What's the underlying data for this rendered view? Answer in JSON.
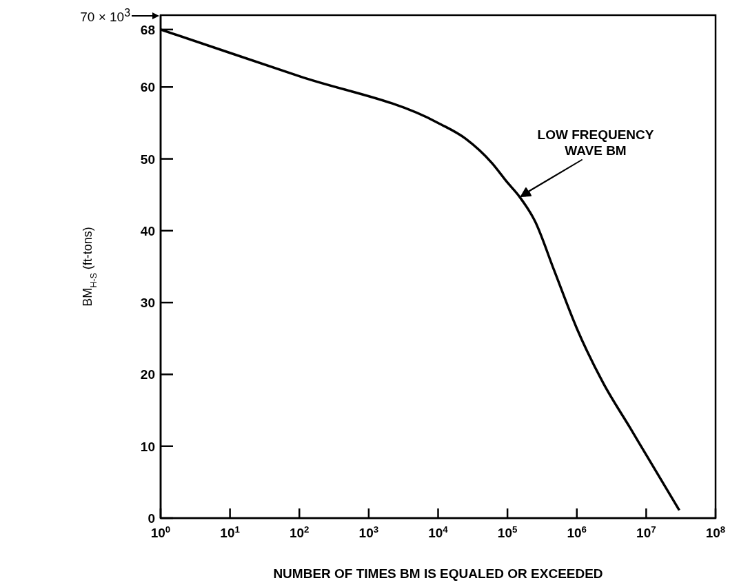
{
  "chart_data": {
    "type": "line",
    "xlabel": "NUMBER OF TIMES BM IS EQUALED OR EXCEEDED",
    "ylabel": "BM$_{H-S}$ (ft-tons)",
    "log": "x",
    "x": [
      1,
      100,
      10000,
      25000,
      60000,
      100000,
      150000,
      250000,
      470000,
      1000000,
      2400000,
      6000000,
      10000000,
      30000000
    ],
    "series": [
      {
        "color": "#000000",
        "values": [
          68,
          61.5,
          55,
          52.8,
          49.4,
          46.7,
          44.7,
          41.3,
          34.5,
          26.4,
          18.8,
          12.4,
          8.8,
          1.1
        ]
      }
    ],
    "xlim": [
      1,
      100000000
    ],
    "xticks": [
      {
        "value": 1,
        "label": "10$^{0}$"
      },
      {
        "value": 10,
        "label": "10$^{1}$"
      },
      {
        "value": 100,
        "label": "10$^{2}$"
      },
      {
        "value": 1000,
        "label": "10$^{3}$"
      },
      {
        "value": 10000,
        "label": "10$^{4}$"
      },
      {
        "value": 100000,
        "label": "10$^{5}$"
      },
      {
        "value": 1000000,
        "label": "10$^{6}$"
      },
      {
        "value": 10000000,
        "label": "10$^{7}$"
      },
      {
        "value": 100000000,
        "label": "10$^{8}$"
      }
    ],
    "ylim": [
      0,
      70
    ],
    "yticks": [
      0,
      10,
      20,
      30,
      40,
      50,
      60,
      68
    ],
    "annotations": [
      "70 × 10$^{3}$",
      "LOW FREQUENCY WAVE BM"
    ],
    "grid": false,
    "legend": false,
    "marker": "none",
    "line_style": "solid"
  }
}
